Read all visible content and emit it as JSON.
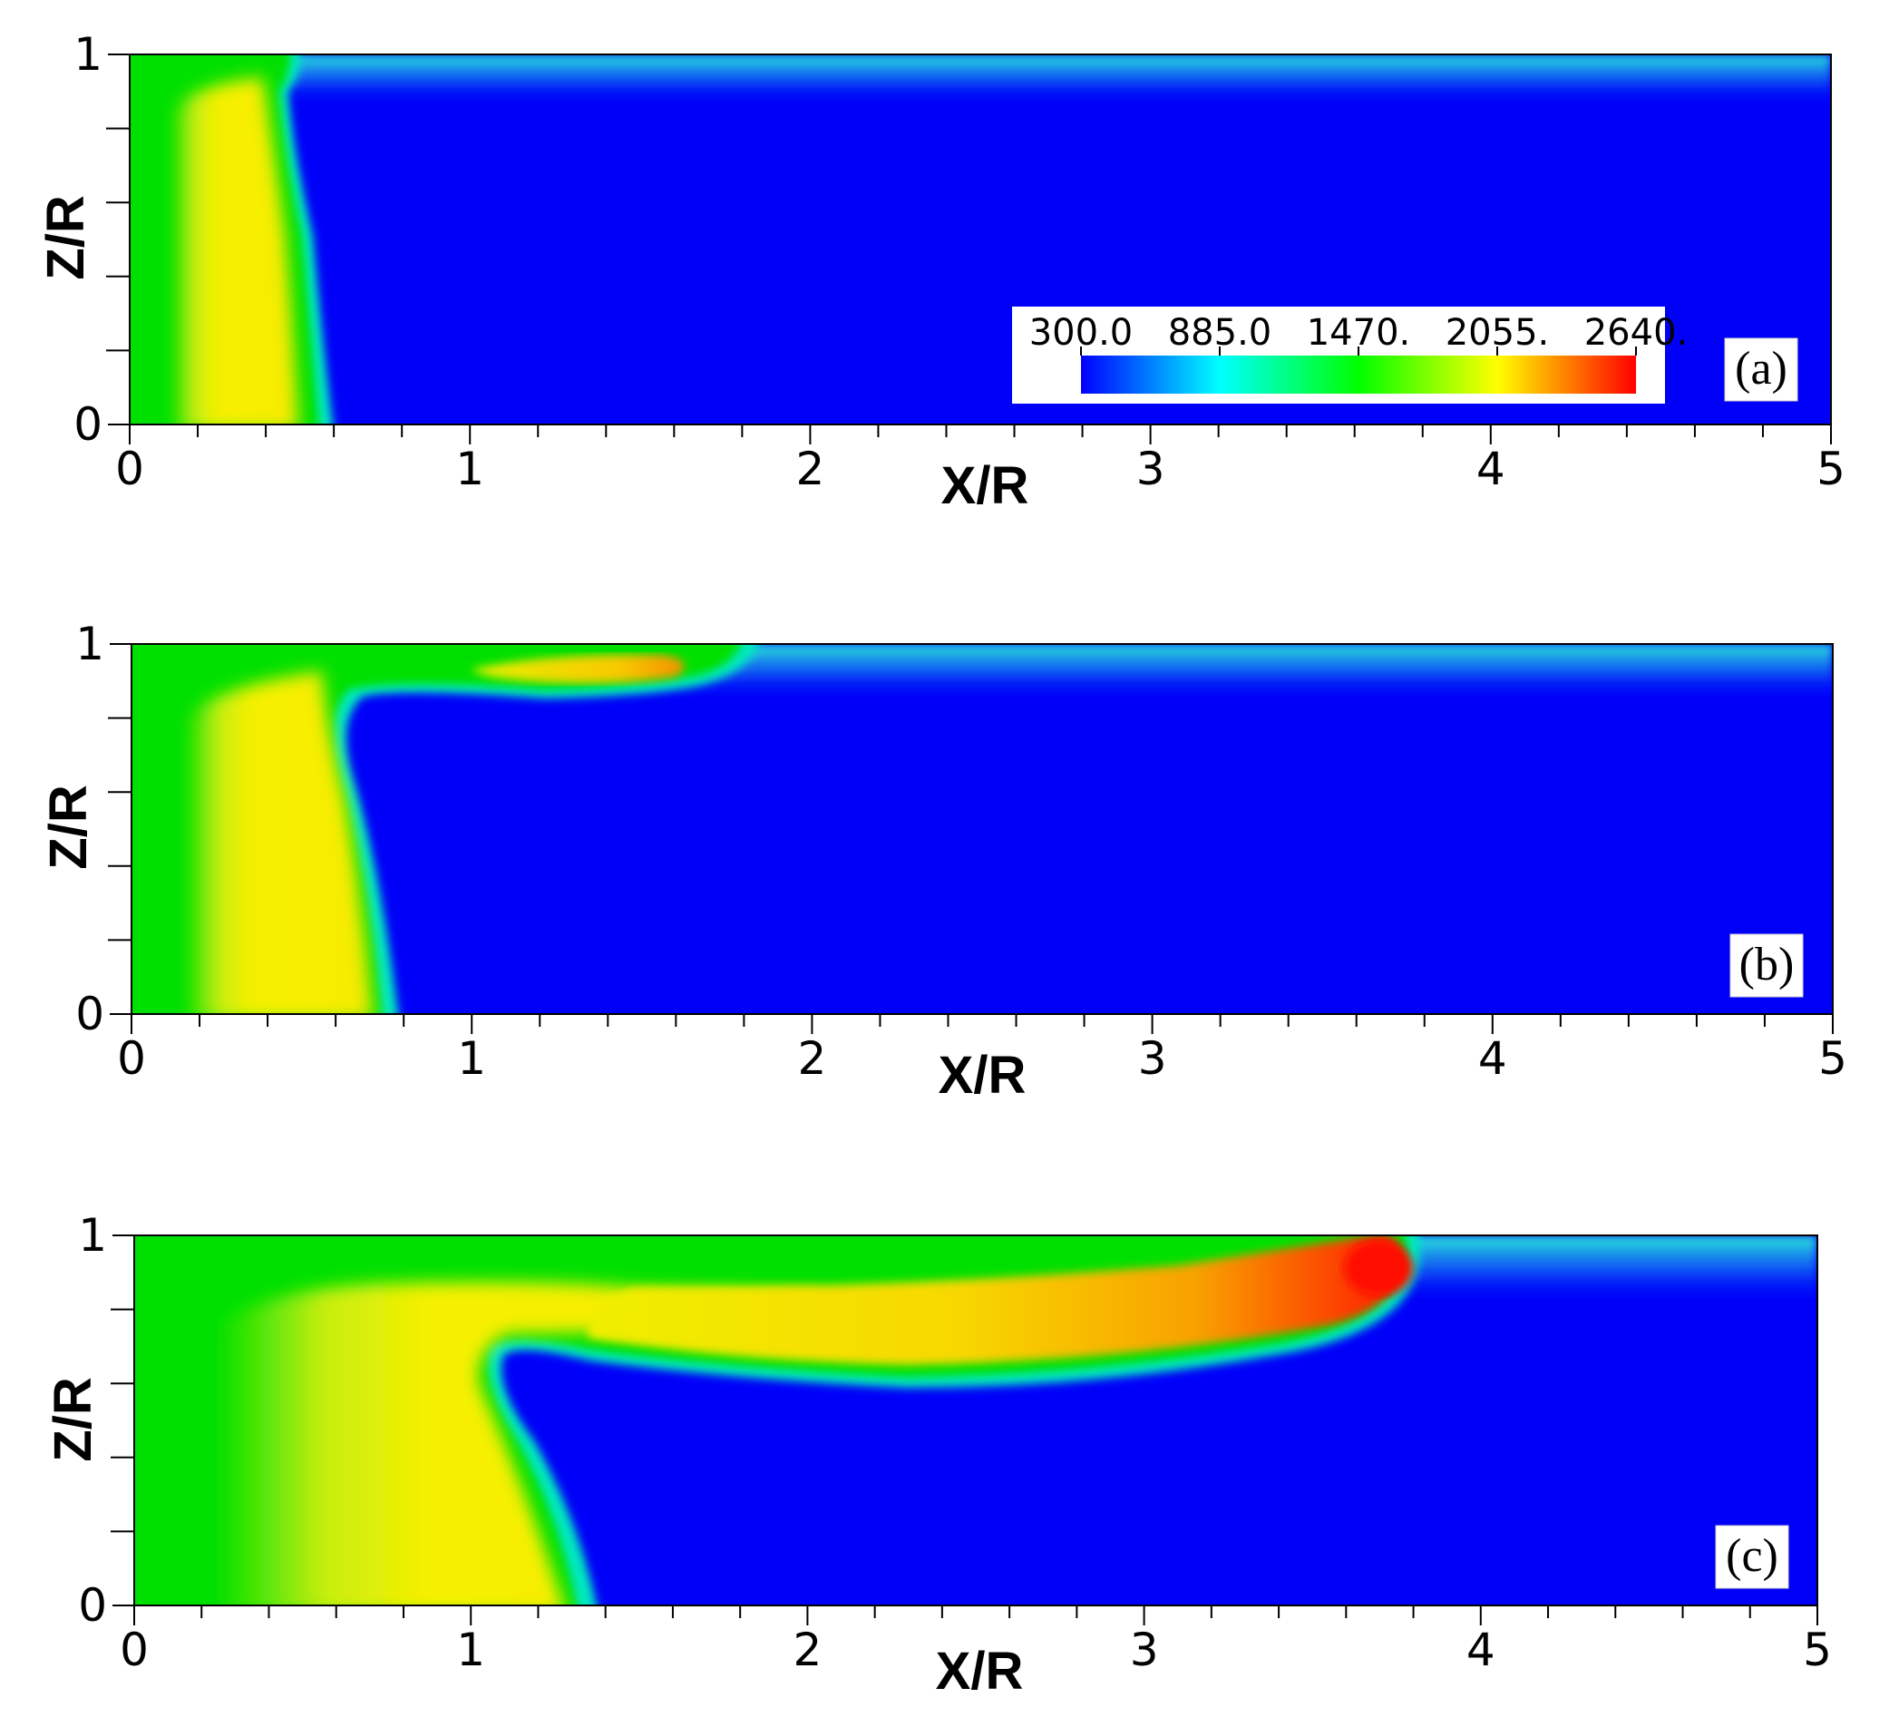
{
  "chart_data": [
    {
      "type": "heatmap",
      "panel_label": "(a)",
      "xlabel": "X/R",
      "ylabel": "Z/R",
      "xlim": [
        0,
        5
      ],
      "ylim": [
        0,
        1
      ],
      "x_ticks": [
        "0",
        "1",
        "2",
        "3",
        "4",
        "5"
      ],
      "y_ticks": [
        "0",
        "1"
      ],
      "colorbar": {
        "ticks": [
          "300.0",
          "885.0",
          "1470.",
          "2055.",
          "2640."
        ],
        "range": [
          300,
          2640
        ],
        "colormap": [
          "#0000ff",
          "#00ffff",
          "#00ff00",
          "#ffff00",
          "#ff0000"
        ]
      },
      "features": {
        "front_x_bottom": 0.55,
        "front_x_top": 0.47,
        "hot_core_x_range": [
          0.15,
          0.5
        ],
        "wall_layer_value": 1100
      }
    },
    {
      "type": "heatmap",
      "panel_label": "(b)",
      "xlabel": "X/R",
      "ylabel": "Z/R",
      "xlim": [
        0,
        5
      ],
      "ylim": [
        0,
        1
      ],
      "x_ticks": [
        "0",
        "1",
        "2",
        "3",
        "4",
        "5"
      ],
      "y_ticks": [
        "0",
        "1"
      ],
      "features": {
        "front_x_bottom": 0.78,
        "front_x_top": 0.62,
        "hot_core_x_range": [
          0.2,
          0.75
        ],
        "upper_flame_x_range": [
          1.0,
          1.7
        ],
        "wall_layer_value": 1100
      }
    },
    {
      "type": "heatmap",
      "panel_label": "(c)",
      "xlabel": "X/R",
      "ylabel": "Z/R",
      "xlim": [
        0,
        5
      ],
      "ylim": [
        0,
        1
      ],
      "x_ticks": [
        "0",
        "1",
        "2",
        "3",
        "4",
        "5"
      ],
      "y_ticks": [
        "0",
        "1"
      ],
      "features": {
        "front_x_bottom": 1.38,
        "front_x_top": 1.12,
        "hot_core_x_range": [
          0.3,
          1.35
        ],
        "upper_flame_x_range": [
          1.1,
          3.8
        ],
        "peak_x": 3.65,
        "peak_value": 2640,
        "wall_layer_value": 1100
      }
    }
  ]
}
